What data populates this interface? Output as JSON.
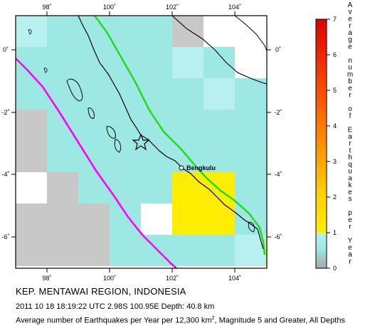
{
  "title": "KEP. MENTAWAI REGION, INDONESIA",
  "event_line": "2011 10 18 18:19:22 UTC 2.98S 100.95E Depth: 40.8 km",
  "description": {
    "before": "Average number of Earthquakes per Year per 12,300 km",
    "superscript": "2",
    "after": ", Magnitude 5 and Greater, All Depths"
  },
  "city_label": "Bengkulu",
  "longitude_ticks": [
    "98˚",
    "100˚",
    "102˚",
    "104˚"
  ],
  "latitude_ticks": [
    "0˚",
    "-2˚",
    "-4˚",
    "-6˚"
  ],
  "color_scale": {
    "title_letters": [
      "A",
      "v",
      "e",
      "r",
      "a",
      "g",
      "e",
      "",
      "n",
      "u",
      "m",
      "b",
      "e",
      "r",
      "",
      "o",
      "f",
      "",
      "E",
      "a",
      "r",
      "t",
      "h",
      "q",
      "u",
      "a",
      "k",
      "e",
      "s",
      "",
      "p",
      "e",
      "r",
      "",
      "Y",
      "e",
      "a",
      "r"
    ],
    "tick_labels": [
      "0",
      "1",
      "2",
      "3",
      "4",
      "5",
      "6",
      "7"
    ],
    "min": 0,
    "max": 7
  },
  "colors": {
    "ocean": "#ffffff",
    "grid_gray": "#c8c8c8",
    "low_rate": "#b8f0f0",
    "mid_rate": "#9ee8e4",
    "high_rate": "#ffee00",
    "high_rate_dark": "#f5dc00",
    "trench_line": "#ff00ff",
    "fault_line": "#22dd22",
    "coastline": "#000000"
  }
}
